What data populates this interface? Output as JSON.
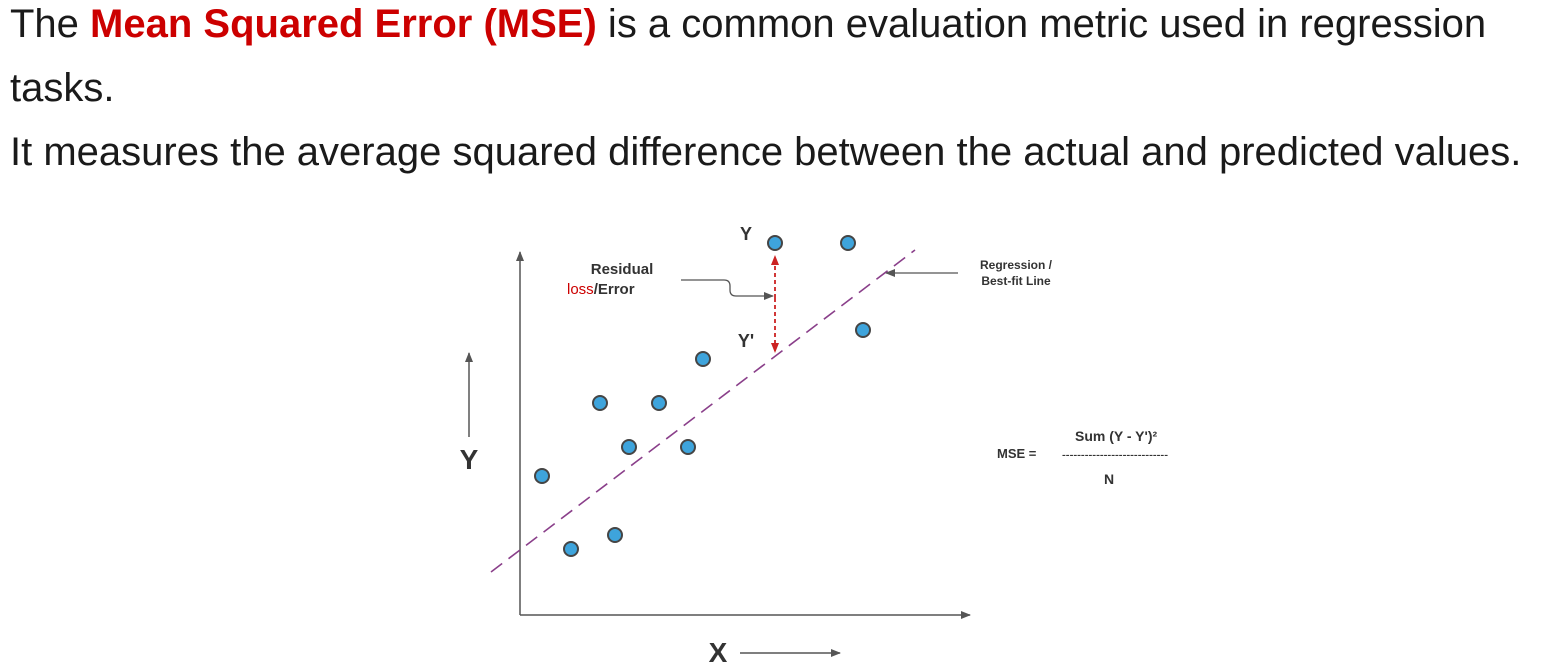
{
  "intro": {
    "line1_before": "The ",
    "term": "Mean Squared Error (MSE)",
    "line1_after": " is a common evaluation metric used in regression tasks.",
    "line2": "It measures the average squared difference between the actual and predicted values."
  },
  "diagram": {
    "x_axis_label": "X",
    "y_axis_label": "Y",
    "actual_label": "Y",
    "predicted_label": "Y'",
    "residual_label": "Residual",
    "loss_word": "loss",
    "error_word": "/Error",
    "regression_label_1": "Regression /",
    "regression_label_2": "Best-fit Line",
    "formula_lhs": "MSE =",
    "formula_numerator": "Sum (Y - Y')²",
    "formula_bar": "----------------------------",
    "formula_denominator": "N"
  },
  "colors": {
    "term": "#cc0000",
    "point_fill": "#3ea4dc",
    "point_stroke": "#454545",
    "regression_line": "#8a3f8a",
    "residual_arrow": "#cc2222",
    "axis": "#555555",
    "loss_word": "#cc0000"
  }
}
